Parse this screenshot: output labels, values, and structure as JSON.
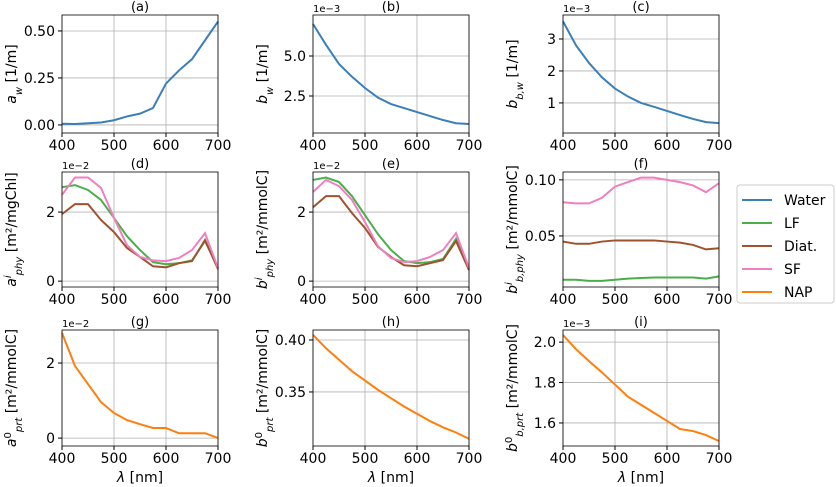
{
  "chart_data": [
    {
      "type": "line",
      "title": "(a)",
      "x": [
        400,
        425,
        450,
        475,
        500,
        525,
        550,
        575,
        600,
        625,
        650,
        675,
        700
      ],
      "series": [
        {
          "name": "Water",
          "color": "#3b7eb8",
          "values": [
            0.006,
            0.005,
            0.009,
            0.013,
            0.025,
            0.045,
            0.06,
            0.09,
            0.22,
            0.29,
            0.35,
            0.45,
            0.55
          ]
        }
      ],
      "xlim": [
        400,
        700
      ],
      "xticks": [
        400,
        500,
        600,
        700
      ],
      "ylim": [
        -0.043,
        0.585
      ],
      "yticks": [
        {
          "value": 0,
          "label": "0.00"
        },
        0.25,
        {
          "value": 0.5,
          "label": "0.50"
        }
      ],
      "grid": true,
      "ylabel": [
        {
          "text": "a",
          "style": "italic"
        },
        {
          "text": "w",
          "shift": "sub",
          "style": "italic"
        },
        {
          "text": " [1/m]"
        }
      ]
    },
    {
      "type": "line",
      "title": "(b)",
      "offset_text": "1e−3",
      "x": [
        400,
        425,
        450,
        475,
        500,
        525,
        550,
        575,
        600,
        625,
        650,
        675,
        700
      ],
      "series": [
        {
          "name": "Water",
          "color": "#3b7eb8",
          "values": [
            7.0,
            5.7,
            4.5,
            3.7,
            3.0,
            2.4,
            2.0,
            1.75,
            1.5,
            1.25,
            1.0,
            0.8,
            0.75
          ]
        }
      ],
      "xlim": [
        400,
        700
      ],
      "xticks": [
        400,
        500,
        600,
        700
      ],
      "ylim": [
        0.19,
        7.56
      ],
      "yticks": [
        2.5,
        {
          "value": 5,
          "label": "5.0"
        }
      ],
      "grid": true,
      "ylabel": [
        {
          "text": "b",
          "style": "italic"
        },
        {
          "text": "w",
          "shift": "sub",
          "style": "italic"
        },
        {
          "text": " [1/m]"
        }
      ]
    },
    {
      "type": "line",
      "title": "(c)",
      "offset_text": "1e−3",
      "x": [
        400,
        425,
        450,
        475,
        500,
        525,
        550,
        575,
        600,
        625,
        650,
        675,
        700
      ],
      "series": [
        {
          "name": "Water",
          "color": "#3b7eb8",
          "values": [
            3.55,
            2.8,
            2.25,
            1.8,
            1.45,
            1.2,
            1.0,
            0.88,
            0.75,
            0.62,
            0.5,
            0.4,
            0.37
          ]
        }
      ],
      "xlim": [
        400,
        700
      ],
      "xticks": [
        400,
        500,
        600,
        700
      ],
      "ylim": [
        0.06,
        3.75
      ],
      "yticks": [
        1,
        2,
        3
      ],
      "grid": true,
      "ylabel": [
        {
          "text": "b",
          "style": "italic"
        },
        {
          "text": "b,w",
          "shift": "sub",
          "style": "italic"
        },
        {
          "text": " [1/m]"
        }
      ]
    },
    {
      "type": "line",
      "title": "(d)",
      "offset_text": "1e−2",
      "x": [
        400,
        425,
        450,
        475,
        500,
        525,
        550,
        575,
        600,
        625,
        650,
        675,
        700
      ],
      "series": [
        {
          "name": "LF",
          "color": "#4aae4a",
          "values": [
            2.72,
            2.78,
            2.64,
            2.35,
            1.83,
            1.3,
            0.9,
            0.55,
            0.49,
            0.52,
            0.6,
            1.16,
            0.38
          ]
        },
        {
          "name": "Diat.",
          "color": "#a0522d",
          "values": [
            1.94,
            2.23,
            2.23,
            1.77,
            1.42,
            0.96,
            0.7,
            0.43,
            0.4,
            0.52,
            0.58,
            1.19,
            0.35
          ]
        },
        {
          "name": "SF",
          "color": "#f07fc0",
          "values": [
            2.5,
            3.0,
            3.0,
            2.7,
            1.83,
            1.04,
            0.7,
            0.6,
            0.58,
            0.67,
            0.9,
            1.39,
            0.38
          ]
        }
      ],
      "xlim": [
        400,
        700
      ],
      "xticks": [
        400,
        500,
        600,
        700
      ],
      "ylim": [
        -0.17,
        3.16
      ],
      "yticks": [
        0,
        2
      ],
      "grid": true,
      "ylabel": [
        {
          "text": "a",
          "style": "italic"
        },
        {
          "text": "i",
          "shift": "super",
          "style": "italic"
        },
        {
          "text": "phy",
          "shift": "sub",
          "style": "italic"
        },
        {
          "text": " [m²/mgChl]"
        }
      ]
    },
    {
      "type": "line",
      "title": "(e)",
      "offset_text": "1e−2",
      "x": [
        400,
        425,
        450,
        475,
        500,
        525,
        550,
        575,
        600,
        625,
        650,
        675,
        700
      ],
      "series": [
        {
          "name": "LF",
          "color": "#4aae4a",
          "values": [
            2.93,
            3.0,
            2.87,
            2.46,
            1.91,
            1.36,
            0.9,
            0.58,
            0.52,
            0.55,
            0.64,
            1.22,
            0.38
          ]
        },
        {
          "name": "Diat.",
          "color": "#a0522d",
          "values": [
            2.14,
            2.46,
            2.46,
            1.97,
            1.54,
            0.99,
            0.7,
            0.46,
            0.43,
            0.52,
            0.61,
            1.16,
            0.32
          ]
        },
        {
          "name": "SF",
          "color": "#f07fc0",
          "values": [
            2.58,
            2.93,
            2.75,
            2.35,
            1.71,
            1.01,
            0.67,
            0.55,
            0.58,
            0.7,
            0.9,
            1.39,
            0.38
          ]
        }
      ],
      "xlim": [
        400,
        700
      ],
      "xticks": [
        400,
        500,
        600,
        700
      ],
      "ylim": [
        -0.17,
        3.16
      ],
      "yticks": [
        0,
        2
      ],
      "grid": true,
      "ylabel": [
        {
          "text": "b",
          "style": "italic"
        },
        {
          "text": "i",
          "shift": "super",
          "style": "italic"
        },
        {
          "text": "phy",
          "shift": "sub",
          "style": "italic"
        },
        {
          "text": " [m²/mmolC]"
        }
      ]
    },
    {
      "type": "line",
      "title": "(f)",
      "x": [
        400,
        425,
        450,
        475,
        500,
        525,
        550,
        575,
        600,
        625,
        650,
        675,
        700
      ],
      "series": [
        {
          "name": "LF",
          "color": "#4aae4a",
          "values": [
            0.011,
            0.011,
            0.01,
            0.01,
            0.011,
            0.012,
            0.0125,
            0.013,
            0.013,
            0.013,
            0.013,
            0.012,
            0.014
          ]
        },
        {
          "name": "Diat.",
          "color": "#a0522d",
          "values": [
            0.045,
            0.043,
            0.043,
            0.045,
            0.046,
            0.046,
            0.046,
            0.046,
            0.045,
            0.044,
            0.042,
            0.038,
            0.039
          ]
        },
        {
          "name": "SF",
          "color": "#f07fc0",
          "values": [
            0.08,
            0.079,
            0.079,
            0.084,
            0.094,
            0.098,
            0.102,
            0.102,
            0.1,
            0.098,
            0.095,
            0.089,
            0.097
          ]
        }
      ],
      "xlim": [
        400,
        700
      ],
      "xticks": [
        400,
        500,
        600,
        700
      ],
      "ylim": [
        0.0045,
        0.107
      ],
      "yticks": [
        0.05,
        {
          "value": 0.1,
          "label": "0.10"
        }
      ],
      "grid": true,
      "ylabel": [
        {
          "text": "b",
          "style": "italic"
        },
        {
          "text": "i",
          "shift": "super",
          "style": "italic"
        },
        {
          "text": "b,phy",
          "shift": "sub",
          "style": "italic"
        },
        {
          "text": " [m²/mmolC]"
        }
      ]
    },
    {
      "type": "line",
      "title": "(g)",
      "offset_text": "1e−2",
      "x": [
        400,
        425,
        450,
        475,
        500,
        525,
        550,
        575,
        600,
        625,
        650,
        675,
        700
      ],
      "series": [
        {
          "name": "NAP",
          "color": "#ff7f0e",
          "values": [
            2.8,
            1.92,
            1.44,
            0.96,
            0.67,
            0.48,
            0.37,
            0.27,
            0.27,
            0.13,
            0.13,
            0.13,
            0.0
          ]
        }
      ],
      "xlim": [
        400,
        700
      ],
      "xticks": [
        400,
        500,
        600,
        700
      ],
      "ylim": [
        -0.21,
        2.88
      ],
      "yticks": [
        0,
        2
      ],
      "grid": true,
      "xlabel": [
        {
          "text": "λ",
          "style": "italic"
        },
        {
          "text": " [nm]"
        }
      ],
      "ylabel": [
        {
          "text": "a",
          "style": "italic"
        },
        {
          "text": "0",
          "shift": "super"
        },
        {
          "text": "prt",
          "shift": "sub",
          "style": "italic"
        },
        {
          "text": " [m²/mmolC]"
        }
      ]
    },
    {
      "type": "line",
      "title": "(h)",
      "x": [
        400,
        425,
        450,
        475,
        500,
        525,
        550,
        575,
        600,
        625,
        650,
        675,
        700
      ],
      "series": [
        {
          "name": "NAP",
          "color": "#ff7f0e",
          "values": [
            0.405,
            0.392,
            0.381,
            0.37,
            0.361,
            0.352,
            0.344,
            0.336,
            0.329,
            0.322,
            0.316,
            0.311,
            0.305
          ]
        }
      ],
      "xlim": [
        400,
        700
      ],
      "xticks": [
        400,
        500,
        600,
        700
      ],
      "ylim": [
        0.298,
        0.4096
      ],
      "yticks": [
        0.35,
        {
          "value": 0.4,
          "label": "0.40"
        }
      ],
      "grid": true,
      "xlabel": [
        {
          "text": "λ",
          "style": "italic"
        },
        {
          "text": " [nm]"
        }
      ],
      "ylabel": [
        {
          "text": "b",
          "style": "italic"
        },
        {
          "text": "0",
          "shift": "super"
        },
        {
          "text": "prt",
          "shift": "sub",
          "style": "italic"
        },
        {
          "text": " [m²/mmolC]"
        }
      ]
    },
    {
      "type": "line",
      "title": "(i)",
      "offset_text": "1e−3",
      "x": [
        400,
        425,
        450,
        475,
        500,
        525,
        550,
        575,
        600,
        625,
        650,
        675,
        700
      ],
      "series": [
        {
          "name": "NAP",
          "color": "#ff7f0e",
          "values": [
            2.035,
            1.965,
            1.906,
            1.85,
            1.79,
            1.73,
            1.69,
            1.65,
            1.61,
            1.57,
            1.56,
            1.54,
            1.51
          ]
        }
      ],
      "xlim": [
        400,
        700
      ],
      "xticks": [
        400,
        500,
        600,
        700
      ],
      "ylim": [
        1.486,
        2.06
      ],
      "yticks": [
        1.6,
        1.8,
        {
          "value": 2,
          "label": "2.0"
        }
      ],
      "grid": true,
      "xlabel": [
        {
          "text": "λ",
          "style": "italic"
        },
        {
          "text": " [nm]"
        }
      ],
      "ylabel": [
        {
          "text": "b",
          "style": "italic"
        },
        {
          "text": "0",
          "shift": "super"
        },
        {
          "text": "b,prt",
          "shift": "sub",
          "style": "italic"
        },
        {
          "text": " [m²/mmolC]"
        }
      ]
    }
  ]
}
